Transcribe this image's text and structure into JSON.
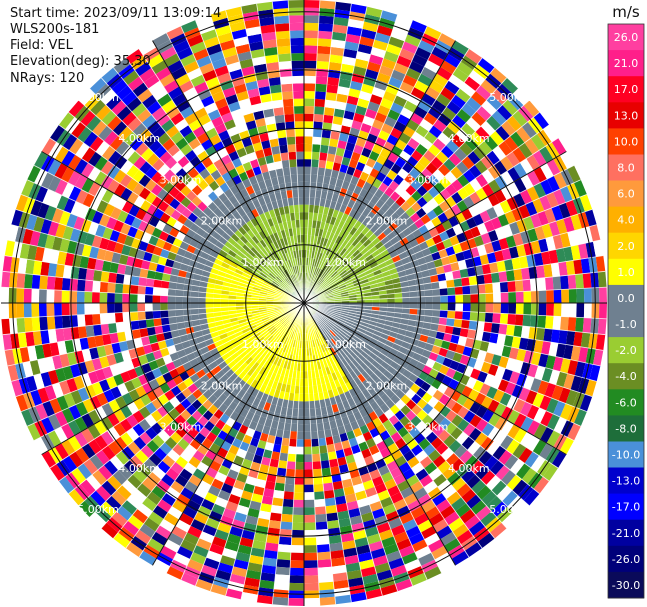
{
  "header": {
    "start_time": "Start time: 2023/09/11 13:09:14",
    "instrument": "WLS200s-181",
    "field": "Field: VEL",
    "elevation": "Elevation(deg): 35.30",
    "nrays": "NRays: 120"
  },
  "chart_data": {
    "type": "heatmap",
    "subtype": "polar-ppi",
    "title": "",
    "field": "VEL",
    "elevation_deg": 35.3,
    "n_rays": 120,
    "range_rings": [
      {
        "label": "1.00km",
        "value_km": 1.0
      },
      {
        "label": "2.00km",
        "value_km": 2.0
      },
      {
        "label": "3.00km",
        "value_km": 3.0
      },
      {
        "label": "4.00km",
        "value_km": 4.0
      },
      {
        "label": "5.00km",
        "value_km": 5.0
      }
    ],
    "max_range_km": 5.2,
    "colorbar": {
      "unit": "m/s",
      "ticks": [
        "26.0",
        "21.0",
        "17.0",
        "13.0",
        "10.0",
        "8.0",
        "6.0",
        "4.0",
        "2.0",
        "1.0",
        "0.0",
        "-1.0",
        "-2.0",
        "-4.0",
        "-6.0",
        "-8.0",
        "-10.0",
        "-13.0",
        "-17.0",
        "-21.0",
        "-26.0",
        "-30.0"
      ],
      "colors": [
        "#ff3fa0",
        "#ff1f8a",
        "#ff0022",
        "#e80000",
        "#ff4000",
        "#ff7060",
        "#ff9a3c",
        "#ffb000",
        "#ffd600",
        "#ffff00",
        "#6f8090",
        "#6f8090",
        "#9acd32",
        "#6b8e23",
        "#228b22",
        "#1e6e3a",
        "#4a90d9",
        "#0000cd",
        "#0000ff",
        "#0000a0",
        "#00007a",
        "#0a0a5a"
      ]
    },
    "pattern": {
      "inner_positive_sector": "south-west, yellow (about +2 m/s) out to 1.7 km",
      "inner_negative_sector": "north, light green (about -2 m/s) out to 1.7 km",
      "near_zero_region": "grey (0 m/s) out to 2.4 km",
      "noise_region": "random colors beyond 2.4 km"
    }
  }
}
